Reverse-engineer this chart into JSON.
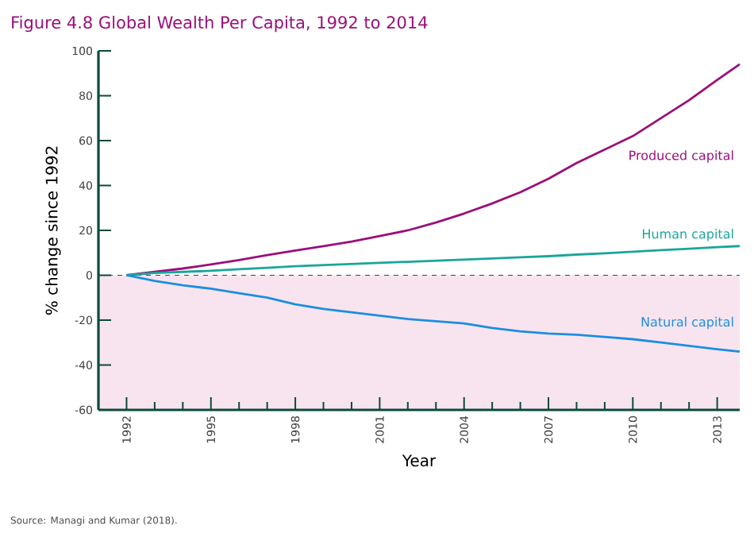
{
  "chart_data": {
    "type": "line",
    "title": "Figure 4.8 Global Wealth Per Capita, 1992 to 2014",
    "xlabel": "Year",
    "ylabel": "% change since 1992",
    "annotations": [
      "Source: Managi and Kumar (2018)."
    ],
    "x": [
      1992,
      1993,
      1994,
      1995,
      1996,
      1997,
      1998,
      1999,
      2000,
      2001,
      2002,
      2003,
      2004,
      2005,
      2006,
      2007,
      2008,
      2009,
      2010,
      2011,
      2012,
      2013,
      2013.8
    ],
    "series": [
      {
        "name": "Produced capital",
        "color": "#9b0f7a",
        "values": [
          0,
          1.5,
          3,
          4.8,
          6.8,
          9,
          11,
          13,
          15,
          17.5,
          20,
          23.5,
          27.5,
          32,
          37,
          43,
          50,
          56,
          62,
          70,
          78,
          87,
          94
        ]
      },
      {
        "name": "Human capital",
        "color": "#1aa59a",
        "values": [
          0,
          1,
          1.5,
          2,
          2.7,
          3.3,
          4,
          4.5,
          5,
          5.5,
          6,
          6.5,
          7,
          7.5,
          8,
          8.5,
          9.2,
          9.8,
          10.5,
          11.2,
          11.8,
          12.5,
          13
        ]
      },
      {
        "name": "Natural capital",
        "color": "#1b8ee0",
        "values": [
          0,
          -2.5,
          -4.5,
          -6,
          -8,
          -10,
          -13,
          -15,
          -16.5,
          -18,
          -19.5,
          -20.5,
          -21.5,
          -23.5,
          -25,
          -26,
          -26.5,
          -27.5,
          -28.5,
          -30,
          -31.5,
          -33,
          -34
        ]
      }
    ],
    "xlim": [
      1991,
      2013.8
    ],
    "ylim": [
      -60,
      100
    ],
    "xticks": [
      {
        "value": 1992,
        "label": "1992"
      },
      {
        "value": 1993,
        "label": null
      },
      {
        "value": 1994,
        "label": null
      },
      {
        "value": 1995,
        "label": "1995"
      },
      {
        "value": 1996,
        "label": null
      },
      {
        "value": 1997,
        "label": null
      },
      {
        "value": 1998,
        "label": "1998"
      },
      {
        "value": 1999,
        "label": null
      },
      {
        "value": 2000,
        "label": null
      },
      {
        "value": 2001,
        "label": "2001"
      },
      {
        "value": 2002,
        "label": null
      },
      {
        "value": 2003,
        "label": null
      },
      {
        "value": 2004,
        "label": "2004"
      },
      {
        "value": 2005,
        "label": null
      },
      {
        "value": 2006,
        "label": null
      },
      {
        "value": 2007,
        "label": "2007"
      },
      {
        "value": 2008,
        "label": null
      },
      {
        "value": 2009,
        "label": null
      },
      {
        "value": 2010,
        "label": "2010"
      },
      {
        "value": 2011,
        "label": null
      },
      {
        "value": 2012,
        "label": null
      },
      {
        "value": 2013,
        "label": "2013"
      }
    ],
    "yticks": [
      -60,
      -40,
      -20,
      0,
      20,
      40,
      60,
      80,
      100
    ],
    "bands": [
      {
        "axis": "y",
        "from": -60,
        "to": 0,
        "color": "#f8e4ef"
      }
    ],
    "ref_lines": [
      {
        "axis": "y",
        "value": 0,
        "color": "#2e4a44",
        "line_style": "dashed"
      }
    ],
    "grid": false,
    "marker": "none",
    "line_style": "solid"
  }
}
